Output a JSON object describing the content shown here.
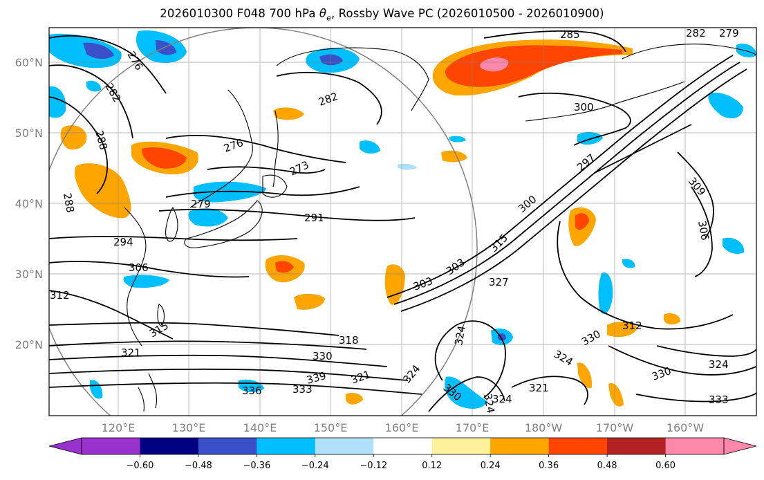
{
  "title": {
    "prefix": "2026010300 F048 700 hPa ",
    "theta_symbol": "θ",
    "theta_sub": "e",
    "suffix": ", Rossby Wave PC (2026010500 - 2026010900)"
  },
  "lat_labels": [
    "60°N",
    "50°N",
    "40°N",
    "30°N",
    "20°N"
  ],
  "lon_labels": [
    "120°E",
    "130°E",
    "140°E",
    "150°E",
    "160°E",
    "170°E",
    "180°W",
    "170°W",
    "160°W"
  ],
  "contour_labels": [
    "276",
    "282",
    "288",
    "288",
    "282",
    "285",
    "282",
    "279",
    "300",
    "276",
    "273",
    "279",
    "291",
    "297",
    "309",
    "306",
    "294",
    "300",
    "306",
    "315",
    "303",
    "303",
    "327",
    "312",
    "312",
    "315",
    "318",
    "321",
    "324",
    "330",
    "330",
    "324",
    "339",
    "336",
    "333",
    "321",
    "324",
    "330",
    "324",
    "321",
    "324",
    "330",
    "324",
    "333"
  ],
  "colorbar": {
    "ticks": [
      "−0.60",
      "−0.48",
      "−0.36",
      "−0.24",
      "−0.12",
      "0.12",
      "0.24",
      "0.36",
      "0.48",
      "0.60"
    ],
    "colors": [
      "#9932cc",
      "#000080",
      "#3a50c8",
      "#00bfff",
      "#b0e0fa",
      "#ffffff",
      "#fff09a",
      "#ffa500",
      "#ff4500",
      "#b22222",
      "#ff88aa",
      "#ff88aa"
    ]
  }
}
